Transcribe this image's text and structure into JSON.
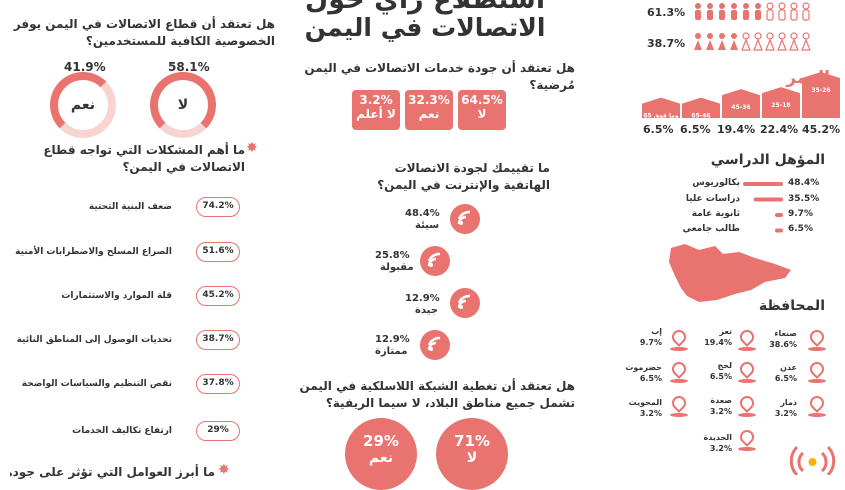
{
  "header": {
    "title_line1": "استطلاع رأي حول",
    "title_line2": "الاتصالات في اليمن"
  },
  "gender": {
    "values": [
      "61.3%",
      "38.7%"
    ]
  },
  "age": {
    "title": "العمر",
    "groups": [
      {
        "label": "35-26",
        "value": "45.2%",
        "share": 45.2
      },
      {
        "label": "25-18",
        "value": "22.4%",
        "share": 22.4
      },
      {
        "label": "45-36",
        "value": "19.4%",
        "share": 19.4
      },
      {
        "label": "65-46",
        "value": "6.5%",
        "share": 6.5
      },
      {
        "label": "65 وما فوق",
        "value": "6.5%",
        "share": 6.5
      }
    ]
  },
  "education": {
    "title": "المؤهل  الدراسي",
    "items": [
      {
        "label": "بكالوريوس",
        "value": "48.4%",
        "share": 48.4
      },
      {
        "label": "دراسات عليا",
        "value": "35.5%",
        "share": 35.5
      },
      {
        "label": "ثانوية عامة",
        "value": "9.7%",
        "share": 9.7
      },
      {
        "label": "طالب جامعي",
        "value": "6.5%",
        "share": 6.5
      }
    ]
  },
  "governorates": {
    "title": "المحافظة",
    "items": [
      {
        "name": "صنعاء",
        "value": "38.6%"
      },
      {
        "name": "تعز",
        "value": "19.4%"
      },
      {
        "name": "إب",
        "value": "9.7%"
      },
      {
        "name": "عدن",
        "value": "6.5%"
      },
      {
        "name": "لحج",
        "value": "6.5%"
      },
      {
        "name": "حضرموت",
        "value": "6.5%"
      },
      {
        "name": "ذمار",
        "value": "3.2%"
      },
      {
        "name": "صعدة",
        "value": "3.2%"
      },
      {
        "name": "المحويت",
        "value": "3.2%"
      },
      {
        "name": "الحديدة",
        "value": "3.2%"
      }
    ]
  },
  "quality": {
    "question": "هل تعتقد أن جودة خدمات الاتصالات في اليمن مُرضية؟",
    "answers": [
      {
        "value": "64.5%",
        "label": "لا"
      },
      {
        "value": "32.3%",
        "label": "نعم"
      },
      {
        "value": "3.2%",
        "label": "لا أعلم"
      }
    ]
  },
  "rating": {
    "question": "ما تقييمك لجودة الاتصالات الهاتفية والإنترنت في اليمن؟",
    "items": [
      {
        "value": "48.4%",
        "label": "سيئة"
      },
      {
        "value": "25.8%",
        "label": "مقبولة"
      },
      {
        "value": "12.9%",
        "label": "جيدة"
      },
      {
        "value": "12.9%",
        "label": "ممتازة"
      }
    ]
  },
  "coverage": {
    "question": "هل تعتقد أن تغطية الشبكة اللاسلكية في اليمن تشمل جميع مناطق البلاد، لا سيما الريفية؟",
    "answers": [
      {
        "value": "71%",
        "label": "لا"
      },
      {
        "value": "29%",
        "label": "نعم"
      }
    ]
  },
  "privacy": {
    "question": "هل تعتقد أن قطاع الاتصالات في اليمن يوفر الخصوصية الكافية للمستخدمين؟",
    "answers": [
      {
        "value": "58.1%",
        "label": "لا"
      },
      {
        "value": "41.9%",
        "label": "نعم"
      }
    ]
  },
  "problems": {
    "question": "ما أهم المشكلات التي تواجه قطاع الاتصالات في اليمن؟",
    "items": [
      {
        "label": "ضعف البنية التحتية",
        "value": "74.2%"
      },
      {
        "label": "الصراع المسلح والاضطرابات الأمنية",
        "value": "51.6%"
      },
      {
        "label": "قلة الموارد والاستثمارات",
        "value": "45.2%"
      },
      {
        "label": "تحديات الوصول إلى المناطق النائية",
        "value": "38.7%"
      },
      {
        "label": "نقص التنظيم والسياسات الواضحة",
        "value": "37.8%"
      },
      {
        "label": "ارتفاع تكاليف الخدمات",
        "value": "29%"
      }
    ],
    "next_question": "ما أبرز العوامل التي تؤثر على جودة الاتصالات"
  }
}
